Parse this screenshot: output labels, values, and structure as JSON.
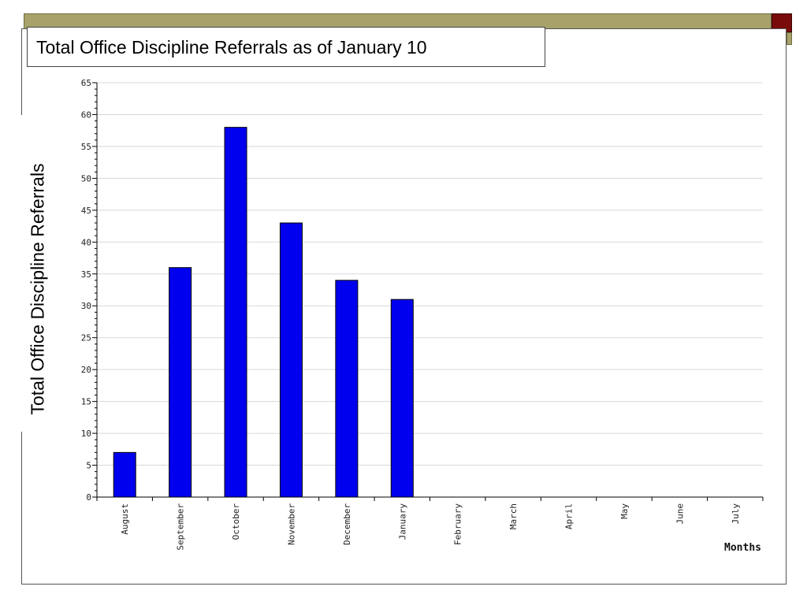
{
  "slide": {
    "title": "Total Office Discipline Referrals as of January 10",
    "ylabel": "Total Office Discipline Referrals"
  },
  "chart_data": {
    "type": "bar",
    "categories": [
      "August",
      "September",
      "October",
      "November",
      "December",
      "January",
      "February",
      "March",
      "April",
      "May",
      "June",
      "July"
    ],
    "values": [
      7,
      36,
      58,
      43,
      34,
      31,
      0,
      0,
      0,
      0,
      0,
      0
    ],
    "title": "Total Office Discipline Referrals as of January 10",
    "xlabel": "Months",
    "ylabel": "Total Office Discipline Referrals",
    "ylim": [
      0,
      65
    ],
    "yticks": [
      0,
      5,
      10,
      15,
      20,
      25,
      30,
      35,
      40,
      45,
      50,
      55,
      60,
      65
    ],
    "grid": true,
    "legend": "none",
    "colors": {
      "bar": "#0000ee",
      "bar_edge": "#000000",
      "grid": "#d8d8d8",
      "accent_band": "#a7a26a",
      "accent_square": "#7a0b0b"
    }
  }
}
